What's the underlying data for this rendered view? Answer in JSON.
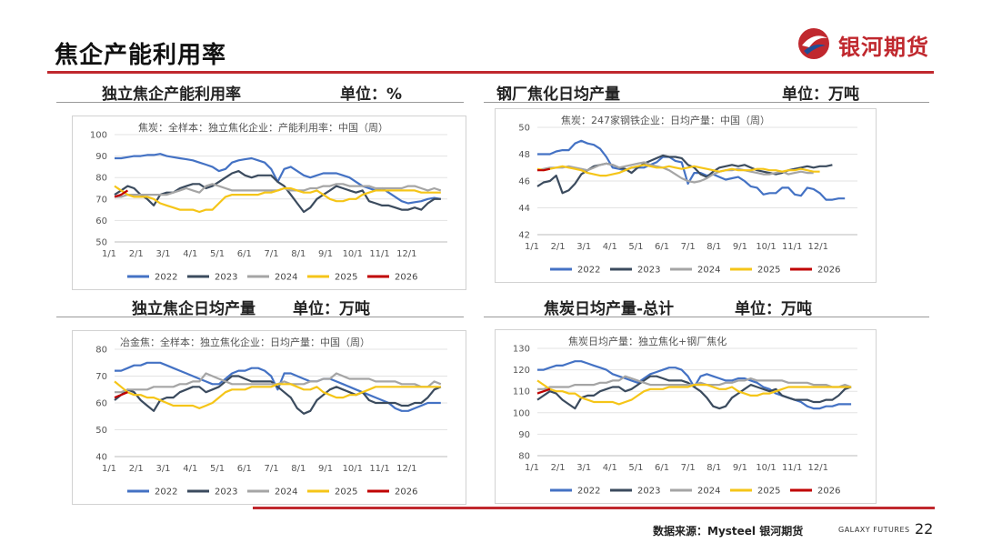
{
  "page": {
    "title": "焦企产能利用率",
    "logo_text": "银河期货",
    "source": "数据来源：Mysteel 银河期货",
    "brand_en": "GALAXY FUTURES",
    "page_number": "22"
  },
  "colors": {
    "accent": "#c0282e",
    "y2022": "#4472c4",
    "y2023": "#3b4b5e",
    "y2024": "#a5a5a5",
    "y2025": "#f5c518",
    "y2026": "#c00000"
  },
  "panels": [
    {
      "head_left": "独立焦企产能利用率",
      "head_right": "单位：%"
    },
    {
      "head_left": "钢厂焦化日均产量",
      "head_right": "单位：万吨"
    },
    {
      "head_left": "独立焦企日均产量",
      "head_right": "单位：万吨"
    },
    {
      "head_left": "焦炭日均产量-总计",
      "head_right": "单位：万吨"
    }
  ],
  "legend": [
    "2022",
    "2023",
    "2024",
    "2025",
    "2026"
  ],
  "chart_data": [
    {
      "type": "line",
      "title": "焦炭：全样本：独立焦化企业：产能利用率：中国（周）",
      "xlabel": "",
      "ylabel": "",
      "x_ticks": [
        "1/1",
        "2/1",
        "3/1",
        "4/1",
        "5/1",
        "6/1",
        "7/1",
        "8/1",
        "9/1",
        "10/1",
        "11/1",
        "12/1"
      ],
      "ylim": [
        50,
        100
      ],
      "y_ticks": [
        50,
        60,
        70,
        80,
        90,
        100
      ],
      "grid": true,
      "legend_position": "bottom",
      "series": [
        {
          "name": "2022",
          "values": [
            89,
            89,
            89.5,
            90,
            90,
            90.5,
            90.5,
            91,
            90,
            89.5,
            89,
            88.5,
            88,
            87,
            86,
            85,
            83,
            84,
            87,
            88,
            88.5,
            89,
            88,
            87,
            84,
            78,
            84,
            85,
            83,
            81,
            80,
            81,
            82,
            82,
            82,
            81,
            80,
            78,
            76,
            75,
            74,
            75,
            73,
            71,
            69,
            68,
            68.5,
            69,
            70,
            70.5,
            70
          ]
        },
        {
          "name": "2023",
          "values": [
            72,
            74,
            76,
            75,
            72,
            70,
            67,
            72,
            73,
            73,
            75,
            76,
            77,
            77,
            75,
            76,
            78,
            80,
            82,
            83,
            81,
            80,
            81,
            81,
            81,
            78,
            76,
            72,
            68,
            64,
            66,
            70,
            72,
            74,
            76,
            75,
            74,
            73,
            74,
            69,
            68,
            67,
            67,
            66,
            65,
            65,
            66,
            65,
            68,
            70,
            70
          ]
        },
        {
          "name": "2024",
          "values": [
            71,
            71,
            72,
            72,
            72,
            72,
            72,
            72,
            72,
            73,
            74,
            75,
            74,
            73,
            76,
            77,
            76,
            75,
            74,
            74,
            74,
            74,
            74,
            74,
            74,
            74,
            75,
            74,
            74,
            74,
            75,
            75,
            76,
            76,
            77,
            77,
            76,
            76,
            76,
            76,
            75,
            75,
            75,
            75,
            75,
            76,
            76,
            75,
            74,
            75,
            74
          ]
        },
        {
          "name": "2025",
          "values": [
            76,
            74,
            72,
            71,
            71,
            71,
            70,
            68,
            67,
            66,
            65,
            65,
            65,
            64,
            65,
            65,
            68,
            71,
            72,
            72,
            72,
            72,
            72,
            73,
            73,
            74,
            75,
            75,
            74,
            73,
            73,
            74,
            72,
            70,
            69,
            69,
            70,
            70,
            72,
            73,
            74,
            74,
            74,
            74,
            74,
            74,
            74,
            73,
            73,
            73,
            73
          ]
        },
        {
          "name": "2026",
          "values": [
            71,
            72,
            74
          ]
        }
      ]
    },
    {
      "type": "line",
      "title": "焦炭：247家钢铁企业：日均产量：中国（周）",
      "xlabel": "",
      "ylabel": "",
      "x_ticks": [
        "1/1",
        "2/1",
        "3/1",
        "4/1",
        "5/1",
        "6/1",
        "7/1",
        "8/1",
        "9/1",
        "10/1",
        "11/1",
        "12/1"
      ],
      "ylim": [
        42,
        50
      ],
      "y_ticks": [
        42,
        44,
        46,
        48,
        50
      ],
      "grid": true,
      "legend_position": "bottom",
      "series": [
        {
          "name": "2022",
          "values": [
            48,
            48,
            48,
            48.2,
            48.3,
            48.3,
            48.8,
            49,
            48.8,
            48.7,
            48.4,
            47.8,
            47,
            46.9,
            46.8,
            47,
            47,
            47,
            47.2,
            47.4,
            47.8,
            47.8,
            47.5,
            47.4,
            45.8,
            46.6,
            46.6,
            46.4,
            46.5,
            46.3,
            46.1,
            46.2,
            46.3,
            46,
            45.6,
            45.5,
            45,
            45.1,
            45.1,
            45.5,
            45.5,
            45,
            44.9,
            45.5,
            45.4,
            45.1,
            44.6,
            44.6,
            44.7,
            44.7
          ]
        },
        {
          "name": "2023",
          "values": [
            45.6,
            45.9,
            46,
            46.4,
            45.1,
            45.3,
            45.8,
            46.5,
            46.8,
            47.1,
            47.2,
            47.3,
            47.2,
            47,
            46.9,
            46.6,
            47,
            47.3,
            47.5,
            47.7,
            47.9,
            47.8,
            47.8,
            47.7,
            47.2,
            47,
            46.5,
            46.3,
            46.7,
            47,
            47.1,
            47.2,
            47.1,
            47.2,
            47,
            46.8,
            46.7,
            46.6,
            46.5,
            46.6,
            46.8,
            46.9,
            47,
            47.1,
            47,
            47.1,
            47.1,
            47.2
          ]
        },
        {
          "name": "2024",
          "values": [
            46.8,
            46.9,
            47,
            47,
            47,
            47.1,
            47,
            46.9,
            46.8,
            47,
            47.2,
            47.3,
            47.2,
            47,
            47.1,
            47.2,
            47.3,
            47.4,
            47.2,
            47.1,
            47,
            46.8,
            46.5,
            46.2,
            46,
            45.9,
            46,
            46.2,
            46.5,
            46.7,
            46.8,
            46.8,
            46.9,
            46.8,
            46.7,
            46.6,
            46.5,
            46.5,
            46.6,
            46.7,
            46.5,
            46.6,
            46.7,
            46.6,
            46.6
          ]
        },
        {
          "name": "2025",
          "values": [
            46.9,
            46.8,
            46.9,
            47,
            47.1,
            47,
            46.9,
            46.8,
            46.6,
            46.5,
            46.4,
            46.4,
            46.5,
            46.6,
            46.8,
            47,
            47.1,
            47.2,
            47.1,
            47,
            47,
            47.1,
            47,
            46.9,
            47,
            47.1,
            47,
            46.9,
            46.8,
            46.7,
            46.8,
            46.9,
            46.8,
            46.8,
            46.8,
            46.9,
            46.9,
            46.8,
            46.8,
            46.7,
            46.8,
            46.8,
            46.9,
            46.8,
            46.7,
            46.7
          ]
        },
        {
          "name": "2026",
          "values": [
            46.8,
            46.8,
            46.9
          ]
        }
      ]
    },
    {
      "type": "line",
      "title": "冶金焦：全样本：独立焦化企业：日均产量：中国（周）",
      "xlabel": "",
      "ylabel": "",
      "x_ticks": [
        "1/1",
        "2/1",
        "3/1",
        "4/1",
        "5/1",
        "6/1",
        "7/1",
        "8/1",
        "9/1",
        "10/1",
        "11/1",
        "12/1"
      ],
      "ylim": [
        40,
        80
      ],
      "y_ticks": [
        40,
        50,
        60,
        70,
        80
      ],
      "grid": true,
      "legend_position": "bottom",
      "series": [
        {
          "name": "2022",
          "values": [
            72,
            72,
            73,
            74,
            74,
            75,
            75,
            75,
            74,
            73,
            72,
            71,
            70,
            69,
            68,
            67,
            67,
            69,
            71,
            72,
            72,
            73,
            73,
            72,
            70,
            65,
            71,
            71,
            70,
            69,
            68,
            68,
            69,
            69,
            68,
            67,
            66,
            65,
            64,
            63,
            62,
            61,
            60,
            58,
            57,
            57,
            58,
            59,
            60,
            60,
            60
          ]
        },
        {
          "name": "2023",
          "values": [
            61,
            63,
            65,
            64,
            61,
            59,
            57,
            61,
            62,
            62,
            64,
            65,
            66,
            66,
            64,
            65,
            66,
            68,
            70,
            70,
            69,
            68,
            68,
            68,
            68,
            66,
            64,
            62,
            58,
            56,
            57,
            61,
            63,
            65,
            66,
            65,
            64,
            63,
            64,
            61,
            60,
            60,
            60,
            60,
            59,
            59,
            60,
            60,
            62,
            65,
            66
          ]
        },
        {
          "name": "2024",
          "values": [
            64,
            64,
            65,
            65,
            65,
            65,
            66,
            66,
            66,
            66,
            67,
            67,
            68,
            68,
            71,
            70,
            69,
            68,
            67,
            67,
            67,
            67,
            67,
            67,
            67,
            67,
            68,
            67,
            67,
            67,
            68,
            68,
            69,
            69,
            71,
            70,
            69,
            69,
            69,
            69,
            68,
            68,
            68,
            68,
            67,
            67,
            67,
            66,
            66,
            68,
            67
          ]
        },
        {
          "name": "2025",
          "values": [
            68,
            66,
            64,
            63,
            63,
            62,
            62,
            61,
            60,
            59,
            59,
            59,
            59,
            58,
            59,
            60,
            62,
            64,
            65,
            65,
            65,
            66,
            66,
            66,
            66,
            67,
            67,
            67,
            66,
            65,
            65,
            66,
            64,
            63,
            62,
            62,
            63,
            63,
            64,
            65,
            66,
            66,
            66,
            66,
            66,
            66,
            66,
            66,
            66,
            66,
            66
          ]
        },
        {
          "name": "2026",
          "values": [
            62,
            63,
            64
          ]
        }
      ]
    },
    {
      "type": "line",
      "title": "焦炭日均产量：独立焦化+钢厂焦化",
      "xlabel": "",
      "ylabel": "",
      "x_ticks": [
        "1/1",
        "2/1",
        "3/1",
        "4/1",
        "5/1",
        "6/1",
        "7/1",
        "8/1",
        "9/1",
        "10/1",
        "11/1",
        "12/1"
      ],
      "ylim": [
        80,
        130
      ],
      "y_ticks": [
        80,
        90,
        100,
        110,
        120,
        130
      ],
      "grid": true,
      "legend_position": "bottom",
      "series": [
        {
          "name": "2022",
          "values": [
            120,
            120,
            121,
            122,
            122,
            123,
            124,
            124,
            123,
            122,
            121,
            120,
            118,
            117,
            116,
            115,
            114,
            116,
            118,
            119,
            120,
            121,
            121,
            120,
            117,
            112,
            117,
            118,
            117,
            116,
            115,
            115,
            116,
            116,
            115,
            114,
            112,
            111,
            109,
            108,
            107,
            106,
            105,
            103,
            102,
            102,
            103,
            103,
            104,
            104,
            104
          ]
        },
        {
          "name": "2023",
          "values": [
            106,
            108,
            110,
            109,
            106,
            104,
            102,
            107,
            108,
            108,
            110,
            111,
            112,
            112,
            110,
            111,
            113,
            115,
            117,
            117,
            116,
            115,
            115,
            115,
            114,
            112,
            110,
            107,
            103,
            102,
            103,
            107,
            109,
            111,
            113,
            112,
            111,
            110,
            111,
            108,
            107,
            106,
            106,
            106,
            105,
            105,
            106,
            106,
            108,
            111,
            112
          ]
        },
        {
          "name": "2024",
          "values": [
            111,
            111,
            112,
            112,
            112,
            112,
            113,
            113,
            113,
            113,
            114,
            114,
            115,
            115,
            117,
            116,
            115,
            114,
            113,
            113,
            113,
            113,
            113,
            113,
            113,
            113,
            114,
            113,
            113,
            113,
            114,
            114,
            115,
            115,
            116,
            115,
            115,
            115,
            115,
            115,
            114,
            114,
            114,
            114,
            113,
            113,
            113,
            112,
            112,
            113,
            112
          ]
        },
        {
          "name": "2025",
          "values": [
            115,
            113,
            111,
            110,
            110,
            109,
            109,
            107,
            106,
            105,
            105,
            105,
            105,
            104,
            105,
            106,
            108,
            110,
            111,
            111,
            111,
            112,
            112,
            112,
            112,
            113,
            113,
            113,
            112,
            111,
            111,
            112,
            110,
            109,
            108,
            108,
            109,
            109,
            110,
            111,
            112,
            112,
            112,
            112,
            112,
            112,
            112,
            112,
            112,
            112,
            112
          ]
        },
        {
          "name": "2026",
          "values": [
            109,
            110,
            111
          ]
        }
      ]
    }
  ]
}
